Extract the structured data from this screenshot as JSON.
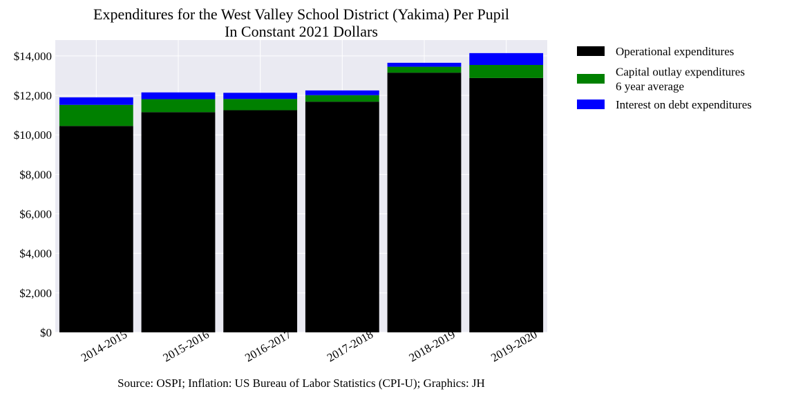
{
  "chart_data": {
    "type": "bar",
    "stacked": true,
    "title_lines": [
      "Expenditures for the West Valley School District (Yakima) Per Pupil",
      "In Constant 2021 Dollars"
    ],
    "xlabel": "",
    "ylabel": "",
    "categories": [
      "2014-2015",
      "2015-2016",
      "2016-2017",
      "2017-2018",
      "2018-2019",
      "2019-2020"
    ],
    "series": [
      {
        "name": "Operational expenditures",
        "color": "#000000",
        "values": [
          10450,
          11150,
          11250,
          11680,
          13150,
          12880
        ]
      },
      {
        "name": "Capital outlay expenditures 6 year average",
        "name_lines": [
          "Capital outlay expenditures",
          "6 year average"
        ],
        "color": "#008000",
        "values": [
          1070,
          660,
          570,
          330,
          300,
          660
        ]
      },
      {
        "name": "Interest on debt expenditures",
        "color": "#0000ff",
        "values": [
          380,
          340,
          310,
          240,
          200,
          600
        ]
      }
    ],
    "ylim": [
      0,
      14800
    ],
    "yticks": [
      0,
      2000,
      4000,
      6000,
      8000,
      10000,
      12000,
      14000
    ],
    "ytick_labels": [
      "$0",
      "$2,000",
      "$4,000",
      "$6,000",
      "$8,000",
      "$10,000",
      "$12,000",
      "$14,000"
    ],
    "grid": true,
    "background_color": "#eaeaf2",
    "legend_position": "outside-right-top",
    "source_note": "Source: OSPI; Inflation: US Bureau of Labor Statistics (CPI-U); Graphics: JH"
  }
}
